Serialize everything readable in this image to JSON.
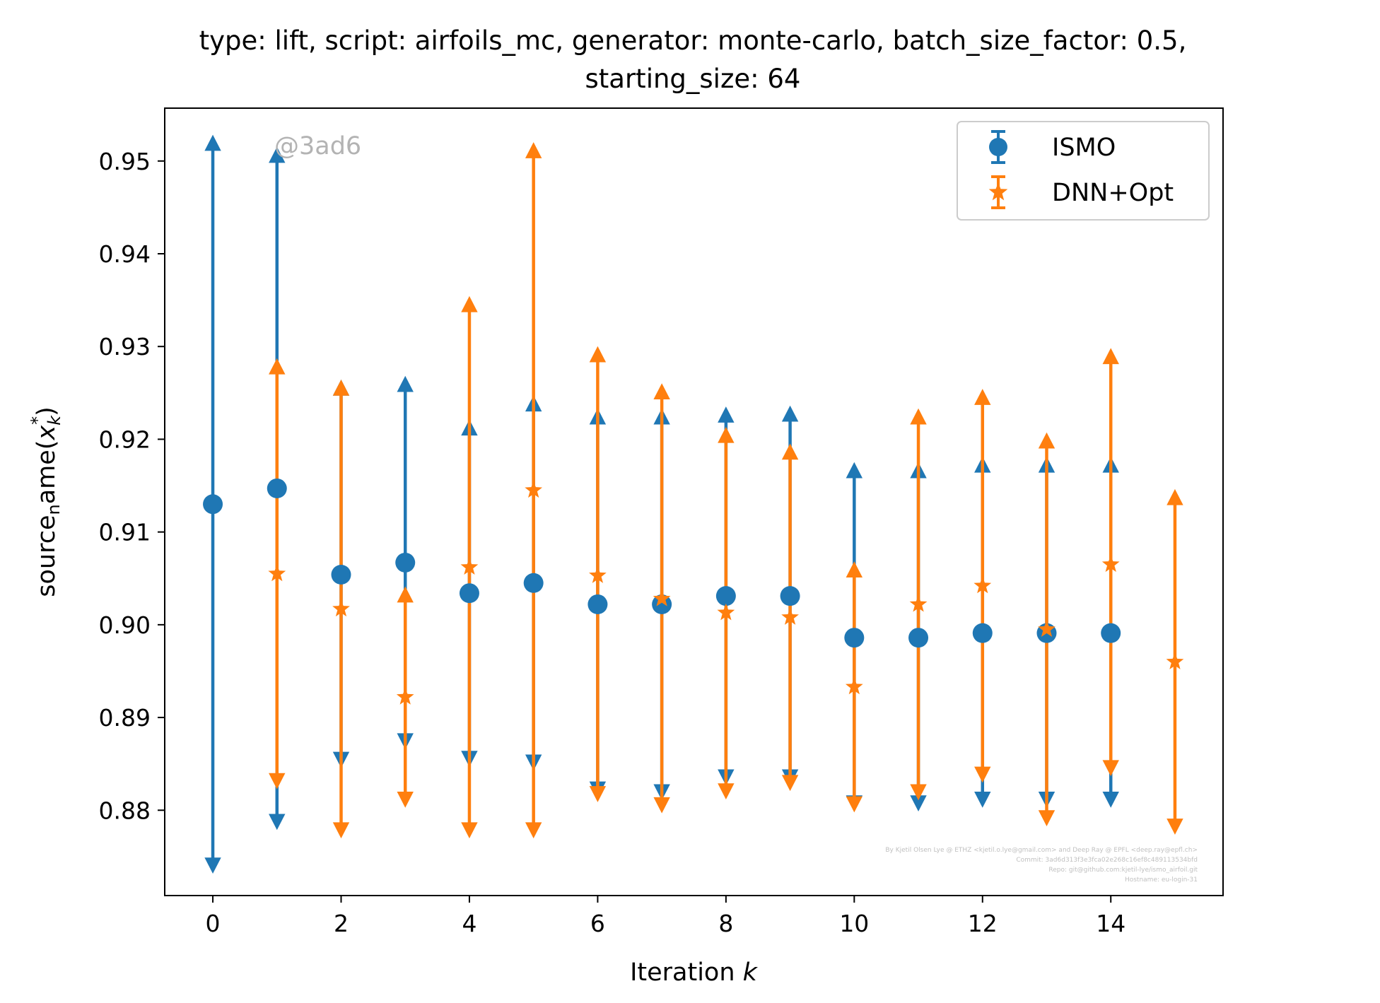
{
  "chart_data": {
    "type": "scatter",
    "title_line1": "type: lift, script: airfoils_mc, generator: monte-carlo, batch_size_factor: 0.5,",
    "title_line2": "starting_size: 64",
    "xlabel_main": "Iteration ",
    "xlabel_var": "k",
    "ylabel_main": "source",
    "ylabel_sub": "n",
    "ylabel_rest": "ame(",
    "ylabel_var": "x",
    "ylabel_varsub": "k",
    "ylabel_varsup": "*",
    "ylabel_close": ")",
    "xlim": [
      -0.75,
      15.75
    ],
    "ylim": [
      0.8708,
      0.9557
    ],
    "xticks": [
      0,
      2,
      4,
      6,
      8,
      10,
      12,
      14
    ],
    "xtick_labels": [
      "0",
      "2",
      "4",
      "6",
      "8",
      "10",
      "12",
      "14"
    ],
    "yticks": [
      0.88,
      0.89,
      0.9,
      0.91,
      0.92,
      0.93,
      0.94,
      0.95
    ],
    "ytick_labels": [
      "0.88",
      "0.89",
      "0.90",
      "0.91",
      "0.92",
      "0.93",
      "0.94",
      "0.95"
    ],
    "legend_position": "upper right",
    "watermark": "@3ad6",
    "credits": [
      "By Kjetil Olsen Lye @ ETHZ <kjetil.o.lye@gmail.com> and Deep Ray @ EPFL <deep.ray@epfl.ch>",
      "Commit: 3ad6d313f3e3fca02e268c16ef8c489113534bfd",
      "Repo: git@github.com:kjetil-lye/ismo_airfoil.git",
      "Hostname: eu-login-31"
    ],
    "series": [
      {
        "name": "ISMO",
        "color": "#1f77b4",
        "marker": "circle",
        "x": [
          0,
          1,
          2,
          3,
          4,
          5,
          6,
          7,
          8,
          9,
          10,
          11,
          12,
          13,
          14
        ],
        "y": [
          0.913,
          0.9147,
          0.9054,
          0.9067,
          0.9034,
          0.9045,
          0.9022,
          0.9022,
          0.9031,
          0.9031,
          0.8986,
          0.8986,
          0.8991,
          0.8991,
          0.8991
        ],
        "upper": [
          0.9523,
          0.951,
          0.9259,
          0.9263,
          0.9216,
          0.9242,
          0.9228,
          0.9228,
          0.923,
          0.9231,
          0.917,
          0.917,
          0.9176,
          0.9176,
          0.9176
        ],
        "lower": [
          0.8737,
          0.8784,
          0.8851,
          0.8871,
          0.8852,
          0.8848,
          0.8819,
          0.8816,
          0.8832,
          0.8832,
          0.8804,
          0.8804,
          0.8808,
          0.8808,
          0.8808
        ]
      },
      {
        "name": "DNN+Opt",
        "color": "#ff7f0e",
        "marker": "star",
        "x": [
          1,
          2,
          3,
          4,
          5,
          6,
          7,
          8,
          9,
          10,
          11,
          12,
          13,
          14,
          15
        ],
        "y": [
          0.9055,
          0.9017,
          0.8922,
          0.9062,
          0.9145,
          0.9053,
          0.9028,
          0.9013,
          0.9008,
          0.8933,
          0.9022,
          0.9042,
          0.8995,
          0.9065,
          0.896
        ],
        "upper": [
          0.9282,
          0.9259,
          0.9036,
          0.9349,
          0.9515,
          0.9295,
          0.9255,
          0.9208,
          0.919,
          0.9063,
          0.9228,
          0.9249,
          0.9202,
          0.9293,
          0.9141
        ],
        "lower": [
          0.8828,
          0.8775,
          0.8808,
          0.8775,
          0.8775,
          0.8814,
          0.8802,
          0.8817,
          0.8826,
          0.8803,
          0.8816,
          0.8835,
          0.8788,
          0.8842,
          0.8779
        ]
      }
    ]
  }
}
